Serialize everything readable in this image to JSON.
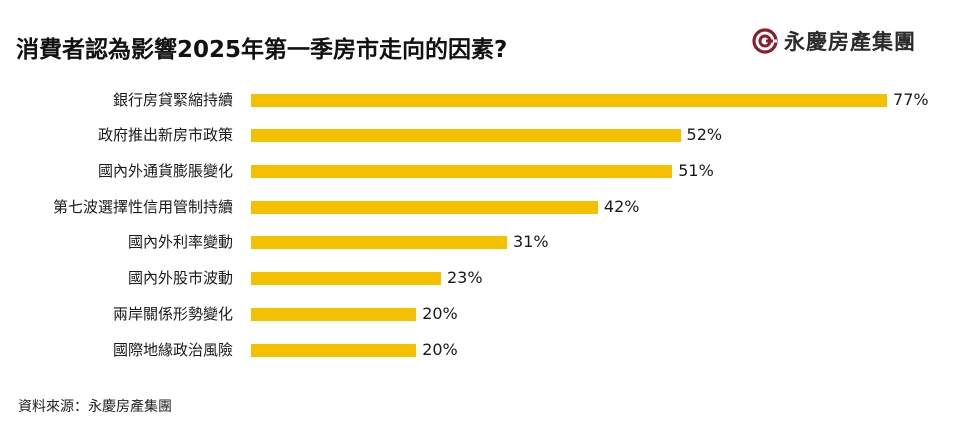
{
  "header": {
    "title": "消費者認為影響2025年第一季房市走向的因素?",
    "logo_text": "永慶房產集團",
    "logo_color": "#8b1e2b"
  },
  "footer": {
    "source": "資料來源：永慶房產集團"
  },
  "colors": {
    "bar": "#f5c000",
    "text": "#1a1a1a"
  },
  "chart_data": {
    "type": "bar",
    "orientation": "horizontal",
    "title": "消費者認為影響2025年第一季房市走向的因素?",
    "categories": [
      "銀行房貸緊縮持續",
      "政府推出新房市政策",
      "國內外通貨膨脹變化",
      "第七波選擇性信用管制持續",
      "國內外利率變動",
      "國內外股市波動",
      "兩岸關係形勢變化",
      "國際地緣政治風險"
    ],
    "values": [
      77,
      52,
      51,
      42,
      31,
      23,
      20,
      20
    ],
    "value_labels": [
      "77%",
      "52%",
      "51%",
      "42%",
      "31%",
      "23%",
      "20%",
      "20%"
    ],
    "unit": "%",
    "xlabel": "",
    "ylabel": "",
    "grid": false,
    "legend": null,
    "source": "資料來源：永慶房產集團"
  }
}
